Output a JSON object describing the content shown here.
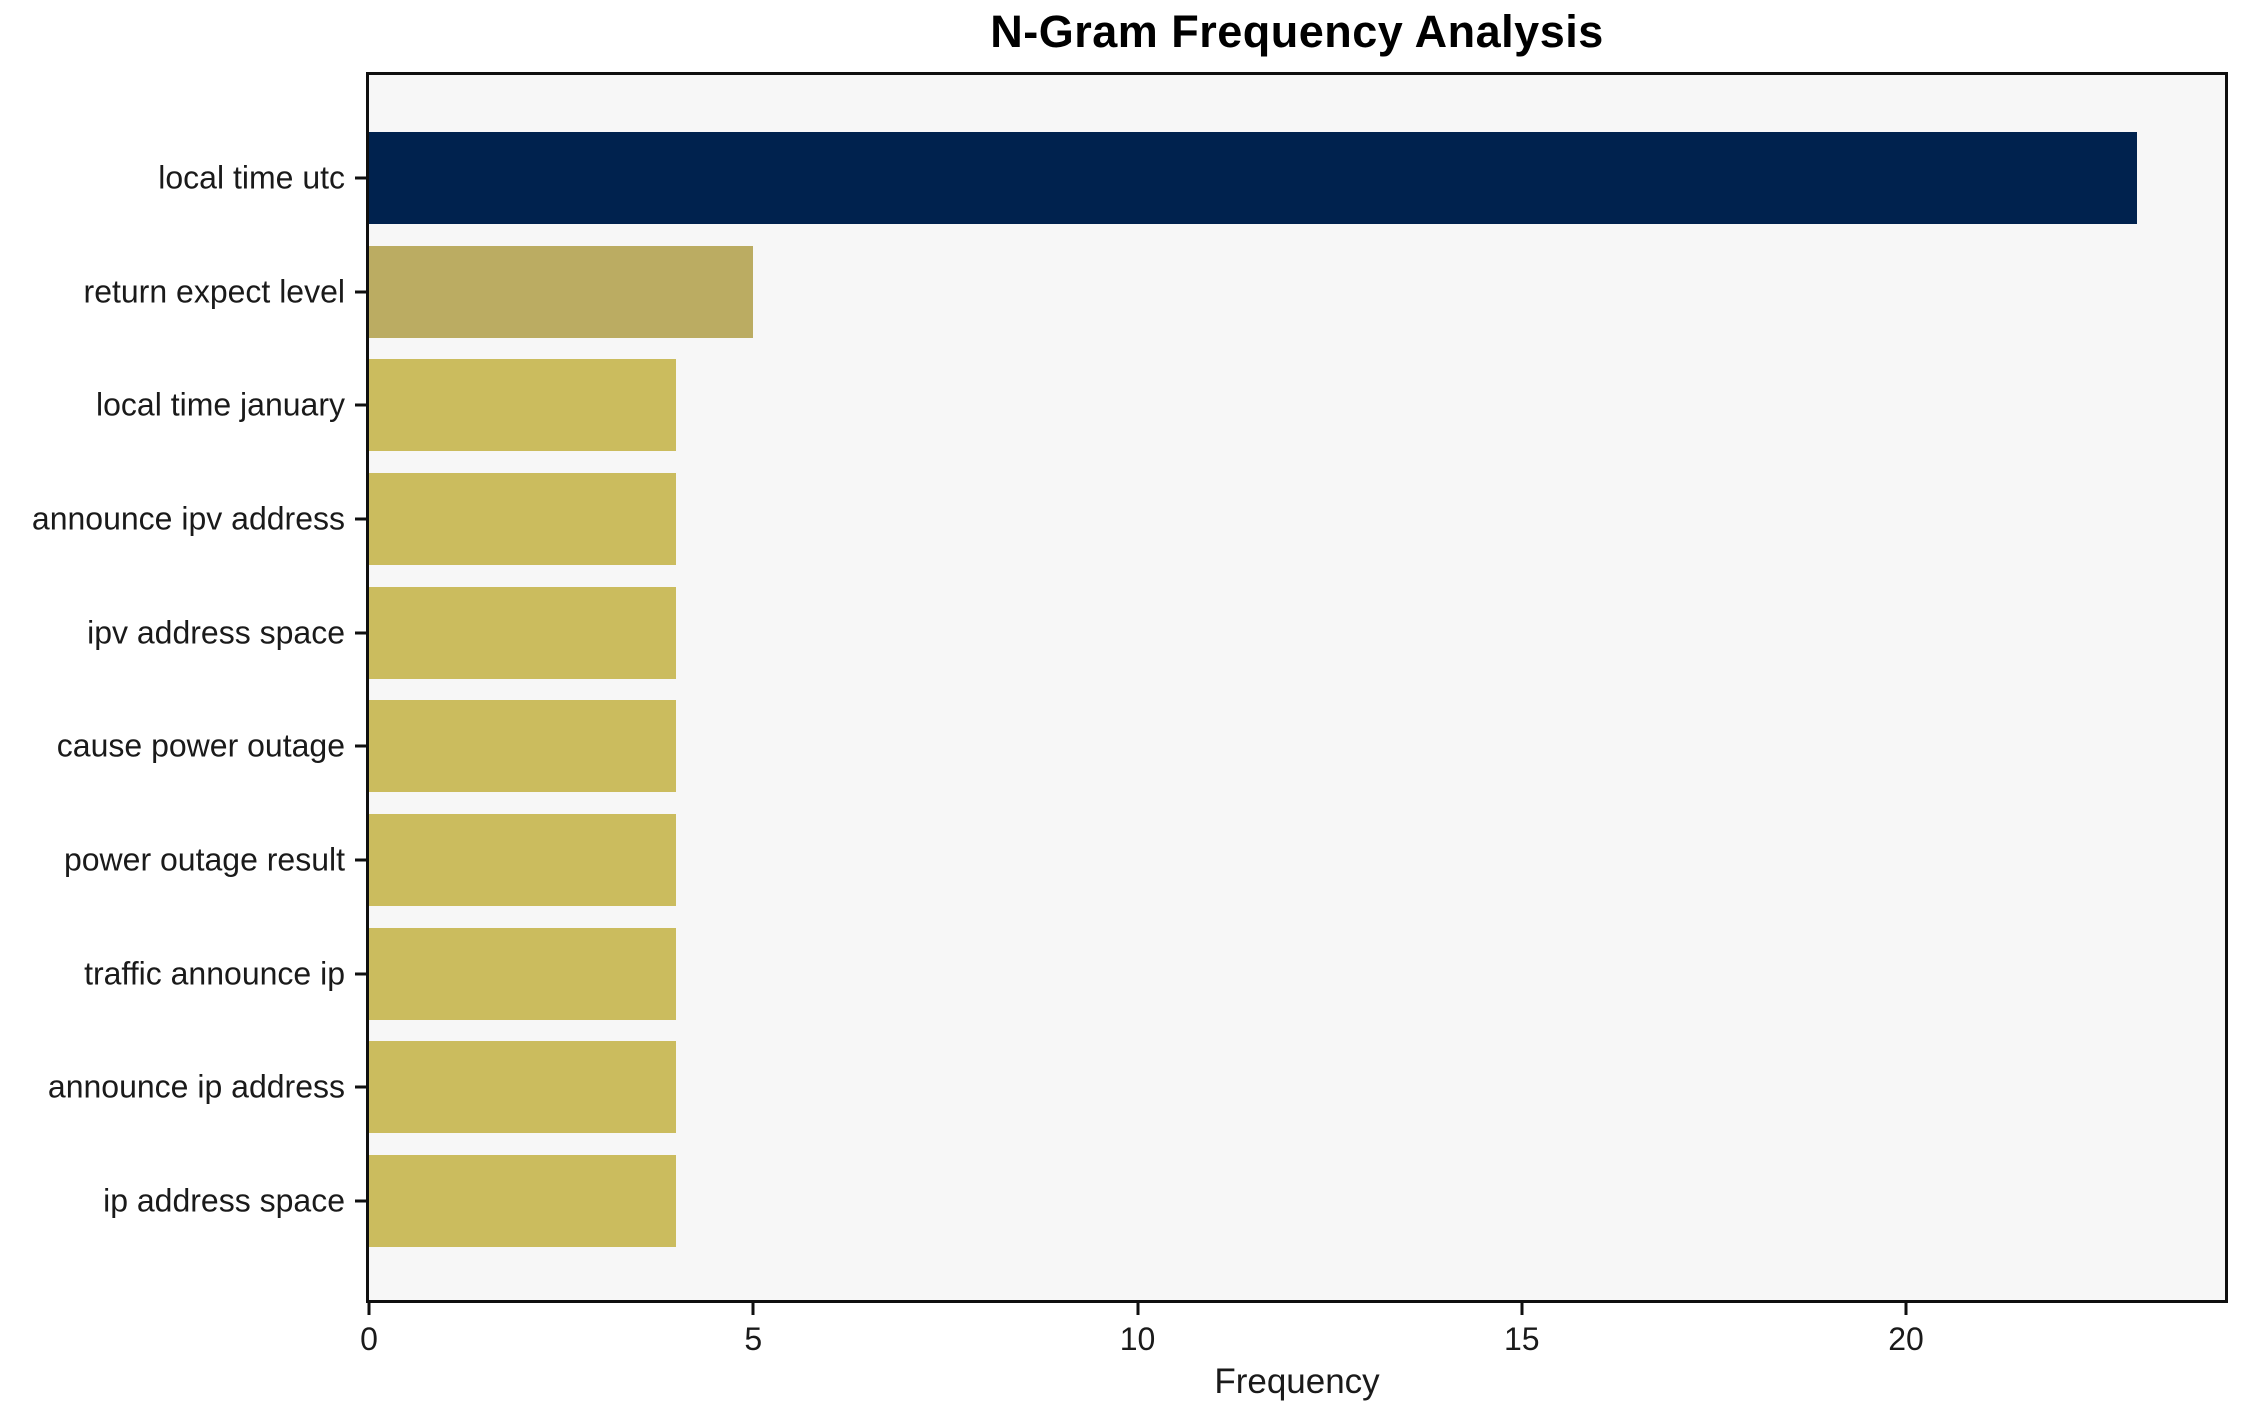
{
  "chart_data": {
    "type": "bar",
    "orientation": "horizontal",
    "title": "N-Gram Frequency Analysis",
    "xlabel": "Frequency",
    "ylabel": "",
    "categories": [
      "local time utc",
      "return expect level",
      "local time january",
      "announce ipv address",
      "ipv address space",
      "cause power outage",
      "power outage result",
      "traffic announce ip",
      "announce ip address",
      "ip address space"
    ],
    "values": [
      23,
      5,
      4,
      4,
      4,
      4,
      4,
      4,
      4,
      4
    ],
    "x_ticks": [
      0,
      5,
      10,
      15,
      20
    ],
    "xlim": [
      0,
      24.15
    ],
    "grid": false,
    "legend": false,
    "bar_colors": [
      "#00224e",
      "#bbac62",
      "#cbbc5e",
      "#cbbc5e",
      "#cbbc5e",
      "#cbbc5e",
      "#cbbc5e",
      "#cbbc5e",
      "#cbbc5e",
      "#cbbc5e"
    ]
  },
  "colors": {
    "navy": "#00224e",
    "gold_muted": "#bbac62",
    "gold": "#cbbc5e",
    "plot_background": "#f7f7f7",
    "figure_background": "#ffffff",
    "spine": "#0f0f0f",
    "text": "#1a1a1a"
  }
}
